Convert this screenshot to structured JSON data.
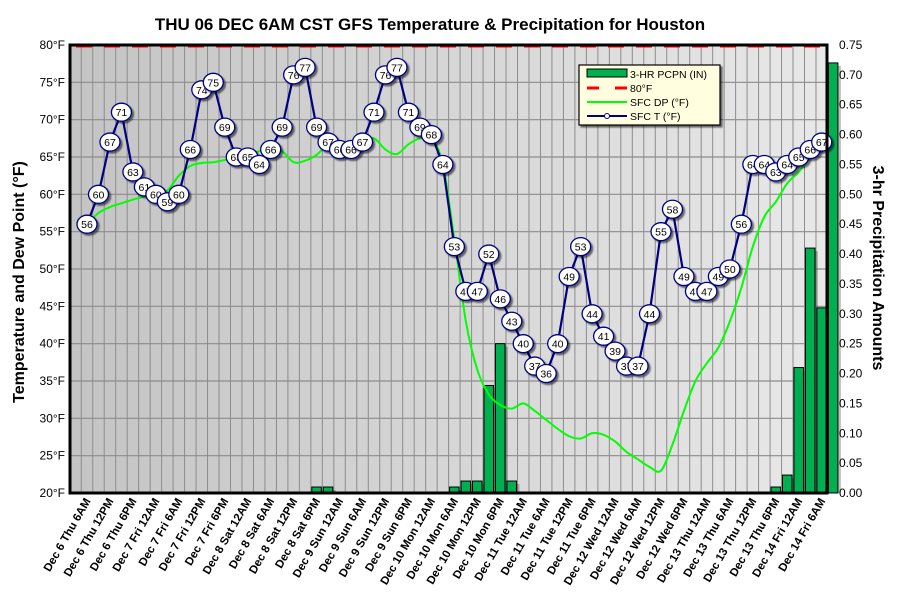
{
  "chart_data": {
    "type": "line",
    "title": "THU 06 DEC 6AM CST GFS Temperature & Precipitation for Houston",
    "ylabel": "Temperature and Dew Point (°F)",
    "y2label": "3-hr Precipitation Amounts",
    "ylim": [
      20,
      80
    ],
    "y2lim": [
      0,
      0.75
    ],
    "yticks": [
      "20°F",
      "25°F",
      "30°F",
      "35°F",
      "40°F",
      "45°F",
      "50°F",
      "55°F",
      "60°F",
      "65°F",
      "70°F",
      "75°F",
      "80°F"
    ],
    "y2ticks": [
      "0.00",
      "0.05",
      "0.10",
      "0.15",
      "0.20",
      "0.25",
      "0.30",
      "0.35",
      "0.40",
      "0.45",
      "0.50",
      "0.55",
      "0.60",
      "0.65",
      "0.70",
      "0.75"
    ],
    "grid": true,
    "legend_position": "top-right",
    "step_hours": 3,
    "x_tick_labels": [
      "Dec 6 Thu 6AM",
      "Dec 6 Thu 12PM",
      "Dec 6 Thu 6PM",
      "Dec 7 Fri 12AM",
      "Dec 7 Fri 6AM",
      "Dec 7 Fri 12PM",
      "Dec 7 Fri 6PM",
      "Dec 8 Sat 12AM",
      "Dec 8 Sat 6AM",
      "Dec 8 Sat 12PM",
      "Dec 8 Sat 6PM",
      "Dec 9 Sun 12AM",
      "Dec 9 Sun 6AM",
      "Dec 9 Sun 12PM",
      "Dec 9 Sun 6PM",
      "Dec 10 Mon 12AM",
      "Dec 10 Mon 6AM",
      "Dec 10 Mon 12PM",
      "Dec 10 Mon 6PM",
      "Dec 11 Tue 12AM",
      "Dec 11 Tue 6AM",
      "Dec 11 Tue 12PM",
      "Dec 11 Tue 6PM",
      "Dec 12 Wed 12AM",
      "Dec 12 Wed 6AM",
      "Dec 12 Wed 12PM",
      "Dec 12 Wed 6PM",
      "Dec 13 Thu 12AM",
      "Dec 13 Thu 6AM",
      "Dec 13 Thu 12PM",
      "Dec 13 Thu 6PM",
      "Dec 14 Fri 12AM",
      "Dec 14 Fri 6AM"
    ],
    "legend": [
      {
        "key": "precip",
        "label": "3-HR PCPN  (IN)",
        "color": "#00b050"
      },
      {
        "key": "ref80",
        "label": "80°F",
        "color": "#ff0000"
      },
      {
        "key": "dewpoint",
        "label": "SFC DP (°F)",
        "color": "#00ff00"
      },
      {
        "key": "temp",
        "label": "SFC T (°F)",
        "color": "#000080"
      }
    ],
    "reference_line": {
      "name": "80°F",
      "value": 80,
      "color": "#ff0000"
    },
    "series": [
      {
        "name": "SFC T (°F)",
        "color": "#000080",
        "values": [
          56,
          60,
          67,
          71,
          63,
          61,
          60,
          59,
          60,
          66,
          74,
          75,
          69,
          65,
          65,
          64,
          66,
          69,
          76,
          77,
          69,
          67,
          66,
          66,
          67,
          71,
          76,
          77,
          71,
          69,
          68,
          64,
          53,
          47,
          47,
          52,
          46,
          43,
          40,
          37,
          36,
          40,
          49,
          53,
          44,
          41,
          39,
          37,
          37,
          44,
          55,
          58,
          49,
          47,
          47,
          49,
          50,
          56,
          64,
          64,
          63,
          64,
          65,
          66,
          67
        ]
      },
      {
        "name": "SFC DP (°F)",
        "color": "#00ff00",
        "values": [
          56,
          57.5,
          58.3,
          58.8,
          59.3,
          59.7,
          60,
          60.5,
          62.5,
          63.8,
          64.2,
          64.3,
          64.6,
          65,
          65.3,
          65.8,
          66.5,
          65.8,
          64.3,
          64.5,
          65.3,
          66.7,
          67,
          67,
          67.2,
          67.5,
          66,
          65.4,
          66.7,
          67.5,
          67.5,
          64,
          54,
          43,
          36.5,
          33.2,
          31.8,
          31.3,
          32,
          31,
          29.8,
          28.6,
          27.6,
          27.3,
          28,
          27.8,
          26.9,
          25.5,
          24.5,
          23.5,
          23,
          26.5,
          31,
          35,
          37.4,
          39.5,
          43,
          47.5,
          53,
          57,
          59,
          61.5,
          63,
          65,
          67
        ]
      },
      {
        "name": "3-HR PCPN (IN)",
        "color": "#00b050",
        "type": "bar",
        "values": [
          0,
          0,
          0,
          0,
          0,
          0,
          0,
          0,
          0,
          0,
          0,
          0,
          0,
          0,
          0,
          0,
          0,
          0,
          0,
          0,
          0.01,
          0.01,
          0,
          0,
          0,
          0,
          0,
          0,
          0,
          0,
          0,
          0,
          0.01,
          0.02,
          0.02,
          0.18,
          0.25,
          0.02,
          0,
          0,
          0,
          0,
          0,
          0,
          0,
          0,
          0,
          0,
          0,
          0,
          0,
          0,
          0,
          0,
          0,
          0,
          0,
          0,
          0,
          0,
          0.01,
          0.03,
          0.21,
          0.41,
          0.31,
          0.72
        ]
      }
    ]
  }
}
